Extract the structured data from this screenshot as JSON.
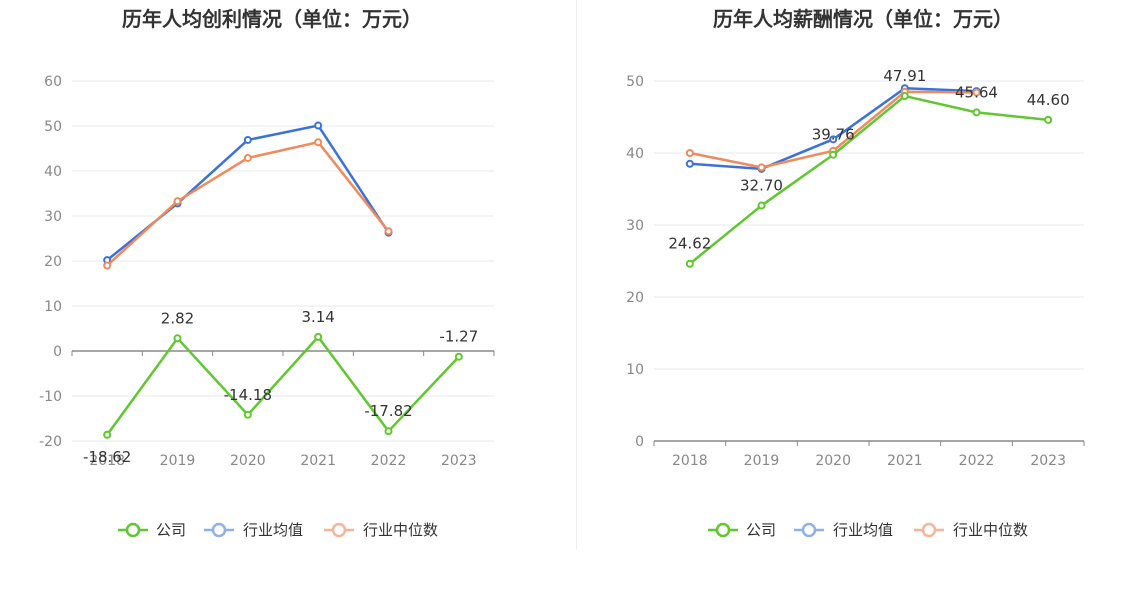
{
  "chart_data": [
    {
      "type": "line",
      "title": "历年人均创利情况（单位：万元）",
      "categories": [
        "2018",
        "2019",
        "2020",
        "2021",
        "2022",
        "2023"
      ],
      "ylim": [
        -20,
        60
      ],
      "yticks": [
        60,
        50,
        40,
        30,
        20,
        10,
        0,
        -10,
        -20
      ],
      "grid": true,
      "legend_position": "bottom",
      "series": [
        {
          "name": "公司",
          "color": "#5fc72f",
          "values": [
            -18.62,
            2.82,
            -14.18,
            3.14,
            -17.82,
            -1.27
          ],
          "labels": [
            "-18.62",
            "2.82",
            "-14.18",
            "3.14",
            "-17.82",
            "-1.27"
          ]
        },
        {
          "name": "行业均值",
          "color": "#3a72d8",
          "values": [
            20.2,
            32.8,
            46.9,
            50.1,
            26.3,
            null
          ]
        },
        {
          "name": "行业中位数",
          "color": "#f08a5d",
          "values": [
            19.0,
            33.3,
            42.9,
            46.4,
            26.6,
            null
          ]
        }
      ]
    },
    {
      "type": "line",
      "title": "历年人均薪酬情况（单位：万元）",
      "categories": [
        "2018",
        "2019",
        "2020",
        "2021",
        "2022",
        "2023"
      ],
      "ylim": [
        0,
        50
      ],
      "yticks": [
        50,
        40,
        30,
        20,
        10,
        0
      ],
      "grid": true,
      "legend_position": "bottom",
      "series": [
        {
          "name": "公司",
          "color": "#5fc72f",
          "values": [
            24.62,
            32.7,
            39.76,
            47.91,
            45.64,
            44.6
          ],
          "labels": [
            "24.62",
            "32.70",
            "39.76",
            "47.91",
            "45.64",
            "44.60"
          ]
        },
        {
          "name": "行业均值",
          "color": "#3a72d8",
          "values": [
            38.5,
            37.8,
            41.9,
            49.0,
            48.6,
            null
          ]
        },
        {
          "name": "行业中位数",
          "color": "#f08a5d",
          "values": [
            40.0,
            38.0,
            40.3,
            48.5,
            48.4,
            null
          ]
        }
      ]
    }
  ],
  "legend": {
    "company": "公司",
    "industry_avg": "行业均值",
    "industry_median": "行业中位数"
  }
}
